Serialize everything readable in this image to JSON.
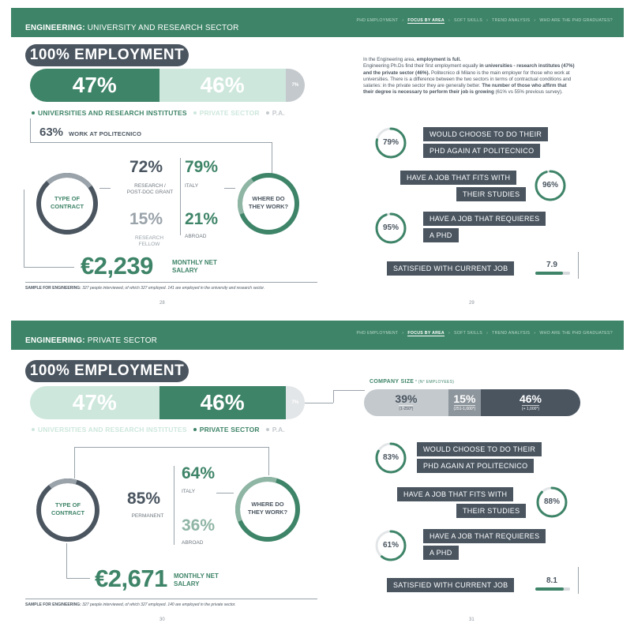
{
  "nav": [
    "PHD EMPLOYMENT",
    "FOCUS BY AREA",
    "SOFT SKILLS",
    "TREND ANALYSIS",
    "WHO ARE THE PHD GRADUATES?"
  ],
  "nav_active_index": 1,
  "colors": {
    "green": "#3e8468",
    "light_green": "#cde7dc",
    "slate": "#4a5560",
    "grey": "#c4c9cd"
  },
  "spread1": {
    "title_bold": "ENGINEERING:",
    "title_rest": " UNIVERSITY AND RESEARCH SECTOR",
    "employment": "100% EMPLOYMENT",
    "bar": [
      {
        "label": "47%",
        "value": 47
      },
      {
        "label": "46%",
        "value": 46
      },
      {
        "label": "7%",
        "value": 7
      }
    ],
    "bar_labels": [
      "UNIVERSITIES AND RESEARCH INSTITUTES",
      "PRIVATE SECTOR",
      "P.A."
    ],
    "polimi_pct": "63%",
    "polimi_label": "WORK AT POLITECNICO",
    "contract_label": "TYPE OF\nCONTRACT",
    "contract_stat1": "72%",
    "contract_label1": "RESEARCH /\nPOST-DOC GRANT",
    "contract_stat2": "15%",
    "contract_label2": "RESEARCH\nFELLOW",
    "where_label": "WHERE DO\nTHEY WORK?",
    "where_stat1": "79%",
    "where_label1": "ITALY",
    "where_stat2": "21%",
    "where_label2": "ABROAD",
    "salary": "€2,239",
    "salary_label": "MONTHLY NET\nSALARY",
    "sample_bold": "SAMPLE FOR ENGINEERING:",
    "sample_text": " 327 people interviewed, of which 327 employed. 141 are employed in the university and research sector.",
    "page_left": "28",
    "page_right": "29",
    "paragraph_html": "In the Engineering area, <b>employment is full.</b><br>Engineering Ph.Ds find their first employment equally <b>in universities - research institutes (47%) and the private sector (46%).</b> Politecnico di Milano is the main employer for those who work at universities. There is a difference between the two sectors in terms of contractual conditions and salaries: in the private sector they are generally better. <b>The number of those who affirm that their degree is necessary to perform their job is growing</b> (61% vs 55% previous survey).",
    "items": [
      {
        "pct": "79%",
        "value": 79,
        "lines": [
          "WOULD CHOOSE TO DO THEIR",
          "PHD AGAIN AT POLITECNICO"
        ]
      },
      {
        "pct": "96%",
        "value": 96,
        "lines": [
          "HAVE A JOB THAT FITS WITH",
          "THEIR STUDIES"
        ]
      },
      {
        "pct": "95%",
        "value": 95,
        "lines": [
          "HAVE A JOB THAT REQUIERES",
          "A PHD"
        ]
      }
    ],
    "satisfied_label": "SATISFIED WITH CURRENT JOB",
    "satisfied_value": "7.9",
    "satisfied_fraction": 0.79
  },
  "spread2": {
    "title_bold": "ENGINEERING:",
    "title_rest": " PRIVATE SECTOR",
    "employment": "100% EMPLOYMENT",
    "bar": [
      {
        "label": "47%",
        "value": 47
      },
      {
        "label": "46%",
        "value": 46
      },
      {
        "label": "7%",
        "value": 7
      }
    ],
    "bar_labels": [
      "UNIVERSITIES AND RESEARCH INSTITUTES",
      "PRIVATE SECTOR",
      "P.A."
    ],
    "contract_label": "TYPE OF\nCONTRACT",
    "contract_stat1": "85%",
    "contract_label1": "PERMANENT",
    "where_label": "WHERE DO\nTHEY WORK?",
    "where_stat1": "64%",
    "where_label1": "ITALY",
    "where_stat2": "36%",
    "where_label2": "ABROAD",
    "salary": "€2,671",
    "salary_label": "MONTHLY NET\nSALARY",
    "sample_bold": "SAMPLE FOR ENGINEERING:",
    "sample_text": " 327 people interviewed, of which 327 employed. 140 are employed in the private sector.",
    "page_left": "30",
    "page_right": "31",
    "company_title": "COMPANY SIZE",
    "company_note": " * (N° EMPLOYEES)",
    "company": [
      {
        "pct": "39%",
        "value": 39,
        "sub": "(1-250*)"
      },
      {
        "pct": "15%",
        "value": 15,
        "sub": "(251-1,000*)"
      },
      {
        "pct": "46%",
        "value": 46,
        "sub": "(+ 1,000*)"
      }
    ],
    "items": [
      {
        "pct": "83%",
        "value": 83,
        "lines": [
          "WOULD CHOOSE TO DO THEIR",
          "PHD AGAIN AT POLITECNICO"
        ]
      },
      {
        "pct": "88%",
        "value": 88,
        "lines": [
          "HAVE A JOB THAT FITS WITH",
          "THEIR STUDIES"
        ]
      },
      {
        "pct": "61%",
        "value": 61,
        "lines": [
          "HAVE A JOB THAT REQUIERES",
          "A PHD"
        ]
      }
    ],
    "satisfied_label": "SATISFIED WITH CURRENT JOB",
    "satisfied_value": "8.1",
    "satisfied_fraction": 0.81
  }
}
